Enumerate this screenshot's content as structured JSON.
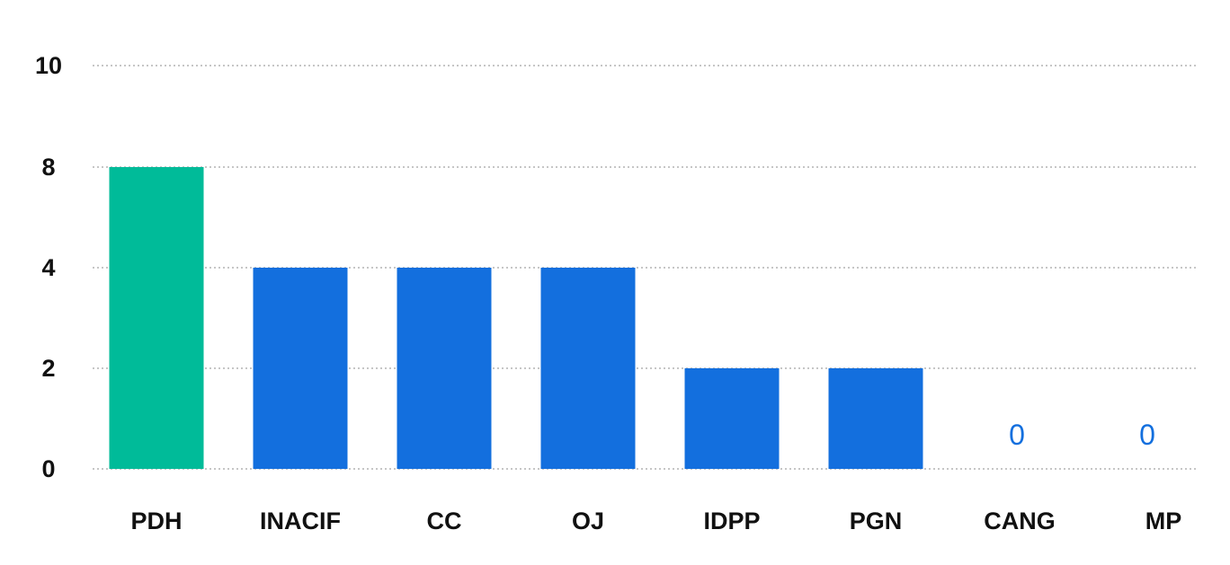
{
  "chart_data": {
    "type": "bar",
    "categories": [
      "PDH",
      "INACIF",
      "CC",
      "OJ",
      "IDPP",
      "PGN",
      "CANG",
      "MP"
    ],
    "values": [
      8,
      4,
      4,
      4,
      2,
      2,
      0,
      0
    ],
    "y_ticks": [
      "10",
      "8",
      "4",
      "2",
      "0"
    ],
    "y_tick_values": [
      10,
      8,
      4,
      2,
      0
    ],
    "grid": true,
    "value_labels": {
      "CANG": "0",
      "MP": "0"
    },
    "title": "",
    "xlabel": "",
    "ylabel": "",
    "colors": {
      "highlight": "#00bb99",
      "bar": "#136fde",
      "zero_label": "#136fde",
      "grid": "#b3b3b3"
    },
    "bar_colors": [
      "highlight",
      "bar",
      "bar",
      "bar",
      "bar",
      "bar",
      "bar",
      "bar"
    ]
  }
}
